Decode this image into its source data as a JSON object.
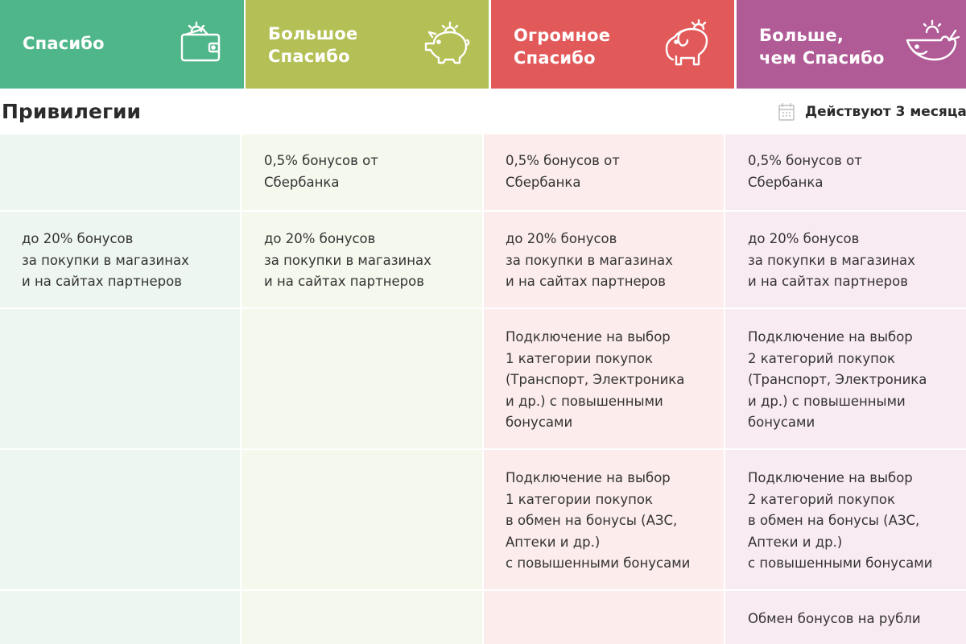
{
  "colors": {
    "tier1": "#4fb68a",
    "tier2": "#b4bf55",
    "tier3": "#e2595a",
    "tier4": "#b05b96"
  },
  "tiers": [
    {
      "name": "Спасибо",
      "icon": "wallet-icon"
    },
    {
      "name": "Большое\nСпасибо",
      "icon": "piggy-bank-icon"
    },
    {
      "name": "Огромное\nСпасибо",
      "icon": "elephant-icon"
    },
    {
      "name": "Больше,\nчем Спасибо",
      "icon": "whale-icon"
    }
  ],
  "section": {
    "title": "Привилегии",
    "validity": "Действуют 3 месяца",
    "validity_icon": "calendar-icon"
  },
  "rows": [
    [
      "",
      "0,5% бонусов от\nСбербанка",
      "0,5% бонусов от\nСбербанка",
      "0,5% бонусов от\nСбербанка"
    ],
    [
      "до 20% бонусов\nза покупки в магазинах\nи на сайтах партнеров",
      "до 20% бонусов\nза покупки в магазинах\nи на сайтах партнеров",
      "до 20% бонусов\nза покупки в магазинах\nи на сайтах партнеров",
      "до 20% бонусов\nза покупки в магазинах\nи на сайтах партнеров"
    ],
    [
      "",
      "",
      "Подключение на выбор\n1 категории покупок\n(Транспорт, Электроника\nи др.) с повышенными\nбонусами",
      "Подключение на выбор\n2 категорий покупок\n(Транспорт, Электроника\nи др.) с повышенными\nбонусами"
    ],
    [
      "",
      "",
      "Подключение на выбор\n1 категории покупок\nв обмен на бонусы (АЗС,\nАптеки и др.)\nс повышенными бонусами",
      "Подключение на выбор\n2 категорий покупок\nв обмен на бонусы (АЗС,\nАптеки и др.)\nс повышенными бонусами"
    ],
    [
      "",
      "",
      "",
      "Обмен бонусов на рубли"
    ]
  ]
}
